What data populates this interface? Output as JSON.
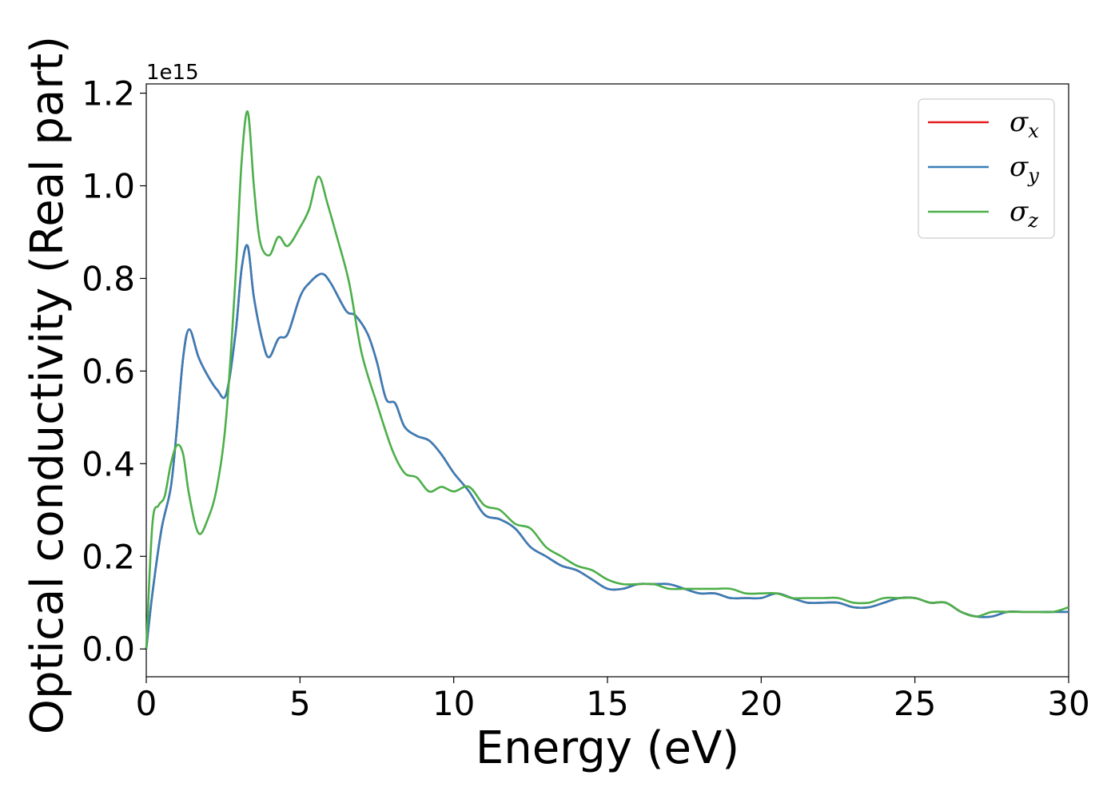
{
  "chart_data": {
    "type": "line",
    "title": "",
    "xlabel": "Energy (eV)",
    "ylabel": "Optical conductivity (Real part)",
    "y_offset_label": "1e15",
    "y_scale": 1000000000000000.0,
    "xlim": [
      0,
      30
    ],
    "ylim": [
      -0.06,
      1.22
    ],
    "x_ticks": [
      0,
      5,
      10,
      15,
      20,
      25,
      30
    ],
    "x_tick_labels": [
      "0",
      "5",
      "10",
      "15",
      "20",
      "25",
      "30"
    ],
    "y_ticks": [
      0.0,
      0.2,
      0.4,
      0.6,
      0.8,
      1.0,
      1.2
    ],
    "y_tick_labels": [
      "0.0",
      "0.2",
      "0.4",
      "0.6",
      "0.8",
      "1.0",
      "1.2"
    ],
    "grid": false,
    "legend_position": "top-right",
    "series": [
      {
        "name": "σx",
        "name_base": "σ",
        "name_sub": "x",
        "color": "#e41a1c",
        "x": [
          0,
          0.2,
          0.5,
          0.8,
          1.0,
          1.2,
          1.4,
          1.7,
          2.0,
          2.3,
          2.6,
          2.9,
          3.1,
          3.3,
          3.5,
          3.8,
          4.0,
          4.3,
          4.6,
          5.0,
          5.3,
          5.7,
          6.0,
          6.5,
          6.8,
          7.2,
          7.5,
          7.8,
          8.1,
          8.4,
          8.8,
          9.2,
          9.6,
          10.0,
          10.5,
          11.0,
          11.5,
          12.0,
          12.5,
          13.0,
          13.5,
          14.0,
          14.5,
          15.0,
          15.5,
          16.0,
          16.5,
          17.0,
          17.5,
          18.0,
          18.5,
          19.0,
          19.5,
          20.0,
          20.5,
          21.0,
          21.5,
          22.0,
          22.5,
          23.0,
          23.5,
          24.0,
          24.5,
          25.0,
          25.5,
          26.0,
          26.5,
          27.0,
          27.5,
          28.0,
          28.5,
          29.0,
          29.5,
          30.0
        ],
        "y": [
          0.0,
          0.12,
          0.26,
          0.35,
          0.48,
          0.63,
          0.69,
          0.63,
          0.59,
          0.56,
          0.55,
          0.68,
          0.82,
          0.87,
          0.76,
          0.66,
          0.63,
          0.67,
          0.68,
          0.76,
          0.79,
          0.81,
          0.79,
          0.73,
          0.72,
          0.68,
          0.62,
          0.54,
          0.53,
          0.48,
          0.46,
          0.45,
          0.42,
          0.38,
          0.34,
          0.29,
          0.28,
          0.26,
          0.22,
          0.2,
          0.18,
          0.17,
          0.15,
          0.13,
          0.13,
          0.14,
          0.14,
          0.14,
          0.13,
          0.12,
          0.12,
          0.11,
          0.11,
          0.11,
          0.12,
          0.11,
          0.1,
          0.1,
          0.1,
          0.09,
          0.09,
          0.1,
          0.11,
          0.11,
          0.1,
          0.1,
          0.08,
          0.07,
          0.07,
          0.08,
          0.08,
          0.08,
          0.08,
          0.08
        ]
      },
      {
        "name": "σy",
        "name_base": "σ",
        "name_sub": "y",
        "color": "#377eb8",
        "x": [
          0,
          0.2,
          0.5,
          0.8,
          1.0,
          1.2,
          1.4,
          1.7,
          2.0,
          2.3,
          2.6,
          2.9,
          3.1,
          3.3,
          3.5,
          3.8,
          4.0,
          4.3,
          4.6,
          5.0,
          5.3,
          5.7,
          6.0,
          6.5,
          6.8,
          7.2,
          7.5,
          7.8,
          8.1,
          8.4,
          8.8,
          9.2,
          9.6,
          10.0,
          10.5,
          11.0,
          11.5,
          12.0,
          12.5,
          13.0,
          13.5,
          14.0,
          14.5,
          15.0,
          15.5,
          16.0,
          16.5,
          17.0,
          17.5,
          18.0,
          18.5,
          19.0,
          19.5,
          20.0,
          20.5,
          21.0,
          21.5,
          22.0,
          22.5,
          23.0,
          23.5,
          24.0,
          24.5,
          25.0,
          25.5,
          26.0,
          26.5,
          27.0,
          27.5,
          28.0,
          28.5,
          29.0,
          29.5,
          30.0
        ],
        "y": [
          0.0,
          0.12,
          0.26,
          0.35,
          0.48,
          0.63,
          0.69,
          0.63,
          0.59,
          0.56,
          0.55,
          0.68,
          0.82,
          0.87,
          0.76,
          0.66,
          0.63,
          0.67,
          0.68,
          0.76,
          0.79,
          0.81,
          0.79,
          0.73,
          0.72,
          0.68,
          0.62,
          0.54,
          0.53,
          0.48,
          0.46,
          0.45,
          0.42,
          0.38,
          0.34,
          0.29,
          0.28,
          0.26,
          0.22,
          0.2,
          0.18,
          0.17,
          0.15,
          0.13,
          0.13,
          0.14,
          0.14,
          0.14,
          0.13,
          0.12,
          0.12,
          0.11,
          0.11,
          0.11,
          0.12,
          0.11,
          0.1,
          0.1,
          0.1,
          0.09,
          0.09,
          0.1,
          0.11,
          0.11,
          0.1,
          0.1,
          0.08,
          0.07,
          0.07,
          0.08,
          0.08,
          0.08,
          0.08,
          0.08
        ]
      },
      {
        "name": "σz",
        "name_base": "σ",
        "name_sub": "z",
        "color": "#4daf4a",
        "x": [
          0,
          0.2,
          0.4,
          0.6,
          0.8,
          1.0,
          1.2,
          1.4,
          1.7,
          2.0,
          2.3,
          2.6,
          2.9,
          3.1,
          3.3,
          3.5,
          3.7,
          4.0,
          4.3,
          4.6,
          5.0,
          5.3,
          5.6,
          5.9,
          6.2,
          6.6,
          7.0,
          7.5,
          8.0,
          8.4,
          8.8,
          9.2,
          9.6,
          10.0,
          10.5,
          11.0,
          11.5,
          12.0,
          12.5,
          13.0,
          13.5,
          14.0,
          14.5,
          15.0,
          15.5,
          16.0,
          16.5,
          17.0,
          17.5,
          18.0,
          18.5,
          19.0,
          19.5,
          20.0,
          20.5,
          21.0,
          21.5,
          22.0,
          22.5,
          23.0,
          23.5,
          24.0,
          24.5,
          25.0,
          25.5,
          26.0,
          26.5,
          27.0,
          27.5,
          28.0,
          28.5,
          29.0,
          29.5,
          30.0
        ],
        "y": [
          0.0,
          0.27,
          0.31,
          0.33,
          0.4,
          0.44,
          0.42,
          0.33,
          0.25,
          0.28,
          0.35,
          0.5,
          0.8,
          1.05,
          1.16,
          1.0,
          0.88,
          0.85,
          0.89,
          0.87,
          0.91,
          0.95,
          1.02,
          0.96,
          0.89,
          0.79,
          0.64,
          0.53,
          0.43,
          0.38,
          0.37,
          0.34,
          0.35,
          0.34,
          0.35,
          0.31,
          0.3,
          0.27,
          0.26,
          0.22,
          0.2,
          0.18,
          0.17,
          0.15,
          0.14,
          0.14,
          0.14,
          0.13,
          0.13,
          0.13,
          0.13,
          0.13,
          0.12,
          0.12,
          0.12,
          0.11,
          0.11,
          0.11,
          0.11,
          0.1,
          0.1,
          0.11,
          0.11,
          0.11,
          0.1,
          0.1,
          0.08,
          0.07,
          0.08,
          0.08,
          0.08,
          0.08,
          0.08,
          0.09
        ]
      }
    ]
  }
}
